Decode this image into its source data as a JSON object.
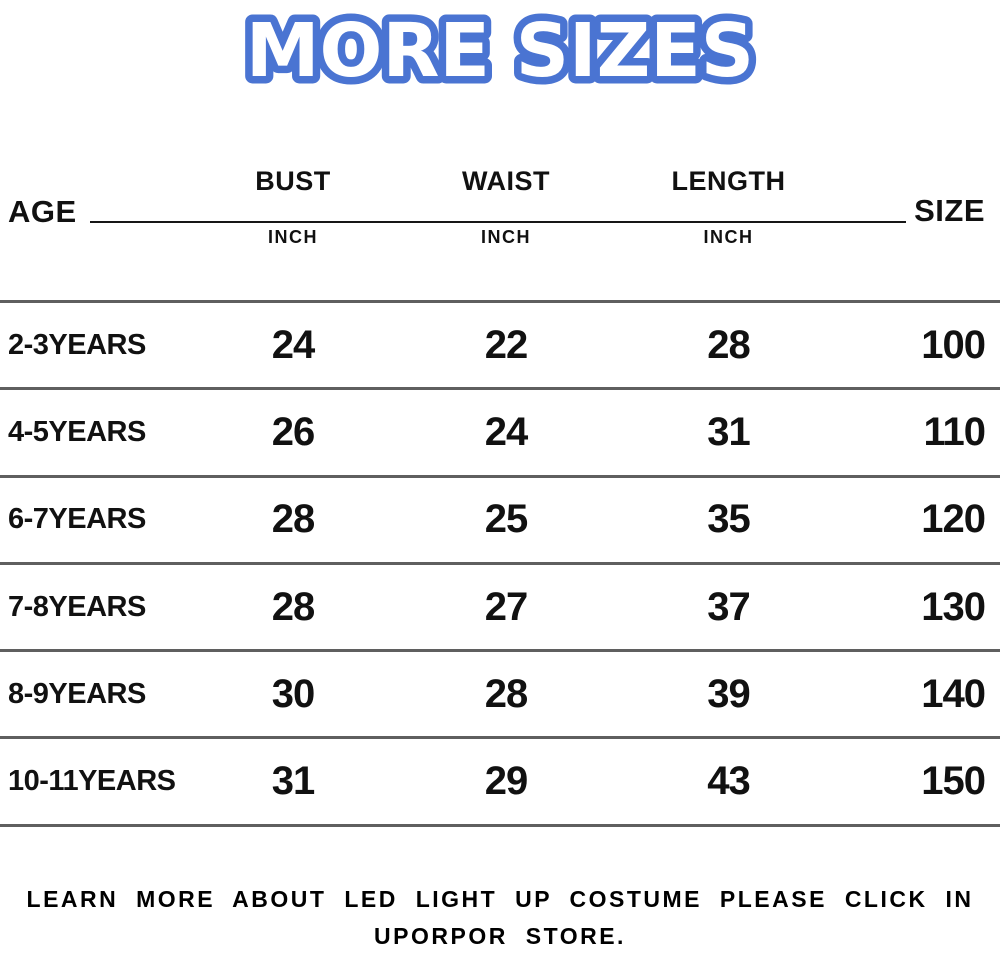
{
  "title": "MORE SIZES",
  "title_color": "#4a74d2",
  "table": {
    "age_header": "AGE",
    "size_header": "SIZE",
    "columns": [
      {
        "label": "BUST",
        "unit": "INCH"
      },
      {
        "label": "WAIST",
        "unit": "INCH"
      },
      {
        "label": "LENGTH",
        "unit": "INCH"
      }
    ],
    "rows": [
      {
        "age": "2-3YEARS",
        "bust": "24",
        "waist": "22",
        "length": "28",
        "size": "100"
      },
      {
        "age": "4-5YEARS",
        "bust": "26",
        "waist": "24",
        "length": "31",
        "size": "110"
      },
      {
        "age": "6-7YEARS",
        "bust": "28",
        "waist": "25",
        "length": "35",
        "size": "120"
      },
      {
        "age": "7-8YEARS",
        "bust": "28",
        "waist": "27",
        "length": "37",
        "size": "130"
      },
      {
        "age": "8-9YEARS",
        "bust": "30",
        "waist": "28",
        "length": "39",
        "size": "140"
      },
      {
        "age": "10-11YEARS",
        "bust": "31",
        "waist": "29",
        "length": "43",
        "size": "150"
      }
    ]
  },
  "footer": {
    "line1": "LEARN MORE ABOUT LED LIGHT UP COSTUME PLEASE CLICK IN",
    "line2": "UPORPOR STORE."
  },
  "chart_data": {
    "type": "table",
    "title": "MORE SIZES",
    "columns": [
      "AGE",
      "BUST (INCH)",
      "WAIST (INCH)",
      "LENGTH (INCH)",
      "SIZE"
    ],
    "rows": [
      [
        "2-3YEARS",
        24,
        22,
        28,
        100
      ],
      [
        "4-5YEARS",
        26,
        24,
        31,
        110
      ],
      [
        "6-7YEARS",
        28,
        25,
        35,
        120
      ],
      [
        "7-8YEARS",
        28,
        27,
        37,
        130
      ],
      [
        "8-9YEARS",
        30,
        28,
        39,
        140
      ],
      [
        "10-11YEARS",
        31,
        29,
        43,
        150
      ]
    ],
    "footnote": "LEARN MORE ABOUT LED LIGHT UP COSTUME PLEASE CLICK IN UPORPOR STORE."
  }
}
